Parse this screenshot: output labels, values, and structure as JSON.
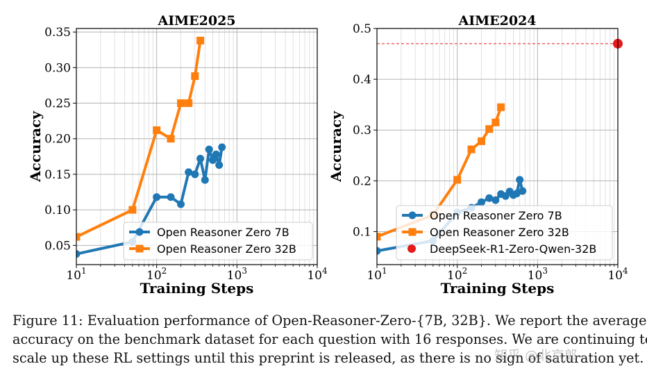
{
  "chart_data": [
    {
      "type": "line",
      "title": "AIME2025",
      "xlabel": "Training Steps",
      "ylabel": "Accuracy",
      "xscale": "log",
      "xlim": [
        10,
        10000
      ],
      "ylim": [
        0.023,
        0.355
      ],
      "xticks": [
        {
          "base": "10",
          "exp": "1"
        },
        {
          "base": "10",
          "exp": "2"
        },
        {
          "base": "10",
          "exp": "3"
        },
        {
          "base": "10",
          "exp": "4"
        }
      ],
      "yticks": [
        "0.05",
        "0.10",
        "0.15",
        "0.20",
        "0.25",
        "0.30",
        "0.35"
      ],
      "legend_position": "lower-right",
      "series": [
        {
          "name": "Open Reasoner Zero 7B",
          "color": "#1f77b4",
          "marker": "circle",
          "x": [
            10,
            50,
            100,
            150,
            200,
            250,
            300,
            350,
            400,
            450,
            500,
            550,
            600,
            650
          ],
          "y": [
            0.038,
            0.055,
            0.118,
            0.118,
            0.108,
            0.153,
            0.15,
            0.172,
            0.142,
            0.185,
            0.17,
            0.178,
            0.163,
            0.188
          ]
        },
        {
          "name": "Open Reasoner Zero 32B",
          "color": "#ff7f0e",
          "marker": "square",
          "x": [
            10,
            50,
            100,
            150,
            200,
            250,
            300,
            350
          ],
          "y": [
            0.062,
            0.1,
            0.212,
            0.2,
            0.25,
            0.25,
            0.288,
            0.338
          ]
        }
      ]
    },
    {
      "type": "line",
      "title": "AIME2024",
      "xlabel": "Training Steps",
      "ylabel": "Accuracy",
      "xscale": "log",
      "xlim": [
        10,
        10000
      ],
      "ylim": [
        0.035,
        0.5
      ],
      "xticks": [
        {
          "base": "10",
          "exp": "1"
        },
        {
          "base": "10",
          "exp": "2"
        },
        {
          "base": "10",
          "exp": "3"
        },
        {
          "base": "10",
          "exp": "4"
        }
      ],
      "yticks": [
        "0.1",
        "0.2",
        "0.3",
        "0.4",
        "0.5"
      ],
      "legend_position": "lower-right",
      "reference": {
        "x": 10000,
        "y": 0.47,
        "color": "#e41a1c"
      },
      "series": [
        {
          "name": "Open Reasoner Zero 7B",
          "color": "#1f77b4",
          "marker": "circle",
          "x": [
            10,
            50,
            100,
            150,
            200,
            250,
            300,
            350,
            400,
            450,
            500,
            550,
            600,
            650
          ],
          "y": [
            0.062,
            0.082,
            0.138,
            0.147,
            0.158,
            0.166,
            0.162,
            0.174,
            0.17,
            0.179,
            0.172,
            0.175,
            0.202,
            0.18
          ]
        },
        {
          "name": "Open Reasoner Zero 32B",
          "color": "#ff7f0e",
          "marker": "square",
          "x": [
            10,
            50,
            100,
            150,
            200,
            250,
            300,
            350
          ],
          "y": [
            0.09,
            0.133,
            0.202,
            0.262,
            0.278,
            0.302,
            0.315,
            0.345
          ]
        },
        {
          "name": "DeepSeek-R1-Zero-Qwen-32B",
          "color": "#e41a1c",
          "marker": "dot",
          "x": [
            10000
          ],
          "y": [
            0.47
          ]
        }
      ]
    }
  ],
  "caption": {
    "line1": "Figure 11: Evaluation performance of Open-Reasoner-Zero-{7B, 32B}. We report the average",
    "line2": "accuracy on the benchmark dataset for each question with 16 responses. We are continuing to",
    "line3": "scale up these RL settings until this preprint is released, as there is no sign of saturation yet."
  },
  "watermark": "知乎 @北京郎"
}
